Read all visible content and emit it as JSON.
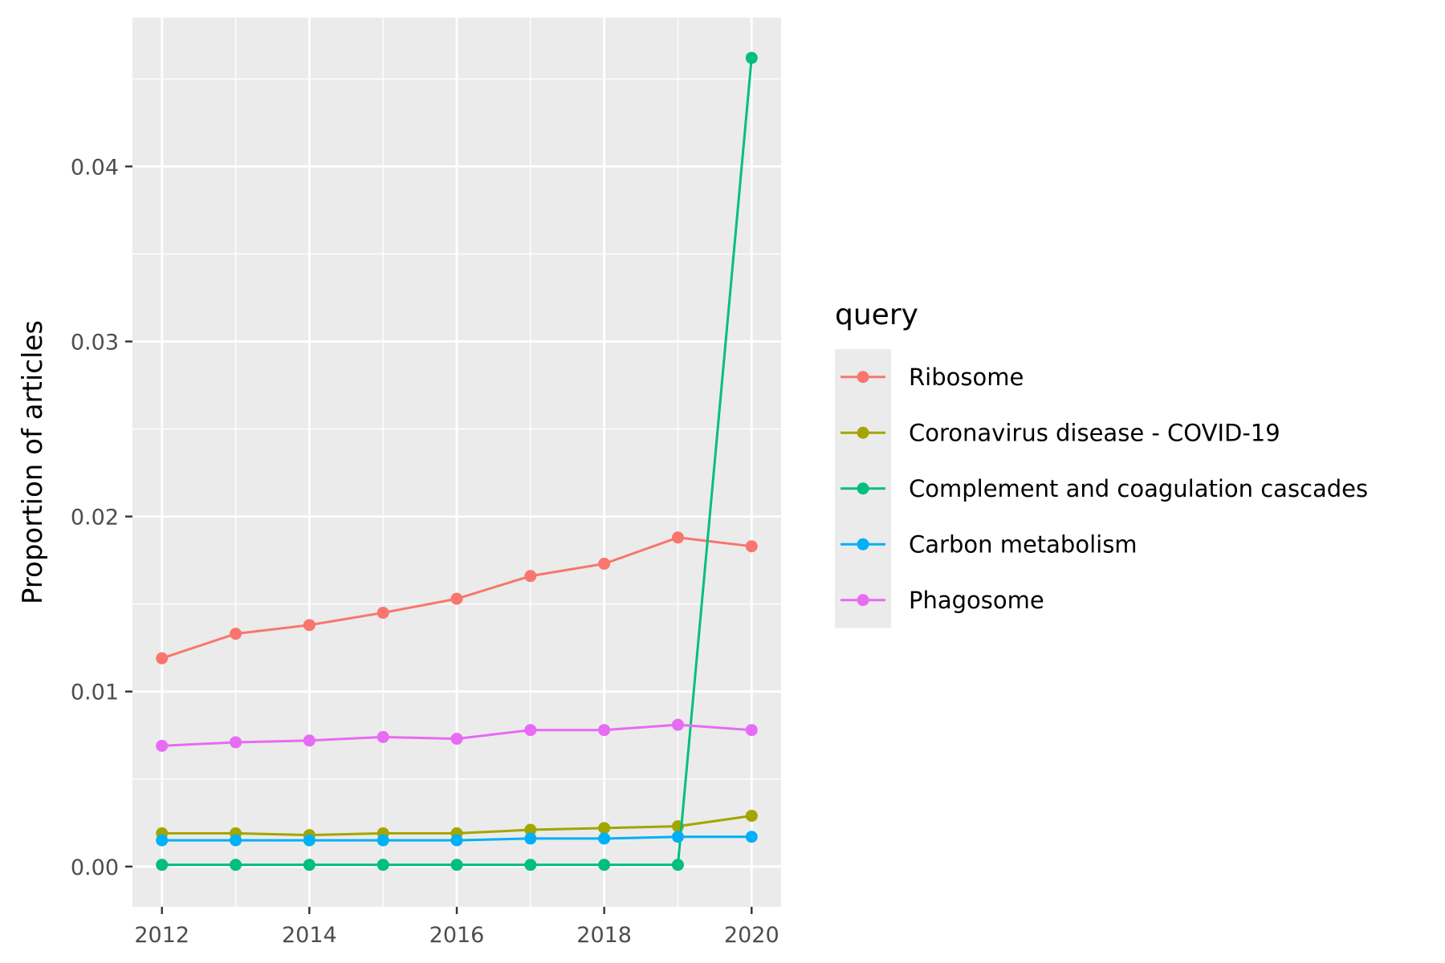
{
  "chart_data": {
    "type": "line",
    "title": "",
    "xlabel": "",
    "ylabel": "Proportion of articles",
    "x": [
      2012,
      2013,
      2014,
      2015,
      2016,
      2017,
      2018,
      2019,
      2020
    ],
    "x_ticks": [
      2012,
      2014,
      2016,
      2018,
      2020
    ],
    "x_tick_labels": [
      "2012",
      "2014",
      "2016",
      "2018",
      "2020"
    ],
    "y_ticks": [
      0,
      0.01,
      0.02,
      0.03,
      0.04
    ],
    "y_tick_labels": [
      "0.00",
      "0.01",
      "0.02",
      "0.03",
      "0.04"
    ],
    "xlim": [
      2011.6,
      2020.4
    ],
    "ylim": [
      -0.0023,
      0.0485
    ],
    "grid": true,
    "legend": {
      "title": "query",
      "placement": "right"
    },
    "series": [
      {
        "name": "Ribosome",
        "color": "#F8766D",
        "values": [
          0.0119,
          0.0133,
          0.0138,
          0.0145,
          0.0153,
          0.0166,
          0.0173,
          0.0188,
          0.0183
        ]
      },
      {
        "name": "Coronavirus disease - COVID-19",
        "color": "#A3A500",
        "values": [
          0.0019,
          0.0019,
          0.0018,
          0.0019,
          0.0019,
          0.0021,
          0.0022,
          0.0023,
          0.0029
        ]
      },
      {
        "name": "Complement and coagulation cascades",
        "color": "#00BF7D",
        "values": [
          0.0001,
          0.0001,
          0.0001,
          0.0001,
          0.0001,
          0.0001,
          0.0001,
          0.0001,
          0.0462
        ]
      },
      {
        "name": "Carbon metabolism",
        "color": "#00B0F6",
        "values": [
          0.0015,
          0.0015,
          0.0015,
          0.0015,
          0.0015,
          0.0016,
          0.0016,
          0.0017,
          0.0017
        ]
      },
      {
        "name": "Phagosome",
        "color": "#E76BF3",
        "values": [
          0.0069,
          0.0071,
          0.0072,
          0.0074,
          0.0073,
          0.0078,
          0.0078,
          0.0081,
          0.0078
        ]
      }
    ]
  }
}
